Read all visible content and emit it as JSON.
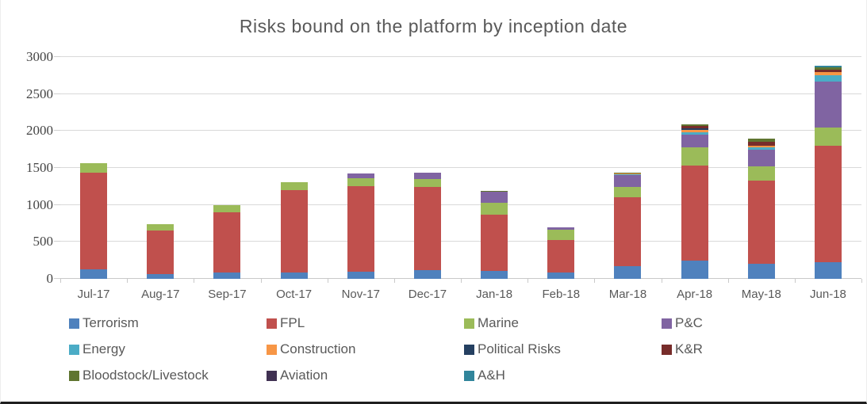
{
  "title": "Risks bound on the platform by inception date",
  "chart_data": {
    "type": "bar",
    "stacked": true,
    "title": "Risks bound on the platform by inception date",
    "xlabel": "",
    "ylabel": "",
    "ylim": [
      0,
      3000
    ],
    "y_ticks": [
      0,
      500,
      1000,
      1500,
      2000,
      2500,
      3000
    ],
    "grid": true,
    "legend_position": "bottom",
    "categories": [
      "Jul-17",
      "Aug-17",
      "Sep-17",
      "Oct-17",
      "Nov-17",
      "Dec-17",
      "Jan-18",
      "Feb-18",
      "Mar-18",
      "Apr-18",
      "May-18",
      "Jun-18"
    ],
    "series": [
      {
        "name": "Terrorism",
        "color": "#4F81BD",
        "values": [
          130,
          65,
          90,
          90,
          100,
          115,
          105,
          85,
          170,
          245,
          200,
          220
        ]
      },
      {
        "name": "FPL",
        "color": "#C0504D",
        "values": [
          1310,
          590,
          810,
          1115,
          1155,
          1125,
          765,
          445,
          935,
          1285,
          1130,
          1575
        ]
      },
      {
        "name": "Marine",
        "color": "#9BBB59",
        "values": [
          120,
          80,
          100,
          100,
          105,
          105,
          155,
          130,
          140,
          250,
          190,
          250
        ]
      },
      {
        "name": "P&C",
        "color": "#8064A2",
        "values": [
          0,
          0,
          0,
          0,
          70,
          90,
          150,
          40,
          155,
          175,
          225,
          625
        ]
      },
      {
        "name": "Energy",
        "color": "#4BACC6",
        "values": [
          0,
          0,
          0,
          0,
          0,
          0,
          0,
          0,
          15,
          30,
          30,
          80
        ]
      },
      {
        "name": "Construction",
        "color": "#F79646",
        "values": [
          0,
          0,
          0,
          0,
          0,
          0,
          0,
          0,
          10,
          30,
          30,
          45
        ]
      },
      {
        "name": "Political Risks",
        "color": "#254061",
        "values": [
          0,
          0,
          0,
          0,
          0,
          0,
          0,
          0,
          0,
          25,
          0,
          0
        ]
      },
      {
        "name": "K&R",
        "color": "#772C2A",
        "values": [
          0,
          0,
          0,
          0,
          0,
          0,
          0,
          0,
          0,
          30,
          45,
          35
        ]
      },
      {
        "name": "Bloodstock/Livestock",
        "color": "#5F7530",
        "values": [
          0,
          0,
          0,
          0,
          0,
          0,
          15,
          0,
          15,
          25,
          45,
          30
        ]
      },
      {
        "name": "Aviation",
        "color": "#403152",
        "values": [
          0,
          0,
          0,
          0,
          0,
          0,
          0,
          0,
          0,
          0,
          0,
          0
        ]
      },
      {
        "name": "A&H",
        "color": "#31859B",
        "values": [
          0,
          0,
          0,
          0,
          0,
          0,
          0,
          0,
          0,
          0,
          0,
          20
        ]
      }
    ]
  },
  "legend": {
    "items": [
      {
        "label": "Terrorism",
        "color": "#4F81BD"
      },
      {
        "label": "FPL",
        "color": "#C0504D"
      },
      {
        "label": "Marine",
        "color": "#9BBB59"
      },
      {
        "label": "P&C",
        "color": "#8064A2"
      },
      {
        "label": "Energy",
        "color": "#4BACC6"
      },
      {
        "label": "Construction",
        "color": "#F79646"
      },
      {
        "label": "Political Risks",
        "color": "#254061"
      },
      {
        "label": "K&R",
        "color": "#772C2A"
      },
      {
        "label": "Bloodstock/Livestock",
        "color": "#5F7530"
      },
      {
        "label": "Aviation",
        "color": "#403152"
      },
      {
        "label": "A&H",
        "color": "#31859B"
      }
    ]
  },
  "style": {
    "gridline_color": "#d9d9d9",
    "title_color": "#595959",
    "axis_label_color": "#595959"
  }
}
